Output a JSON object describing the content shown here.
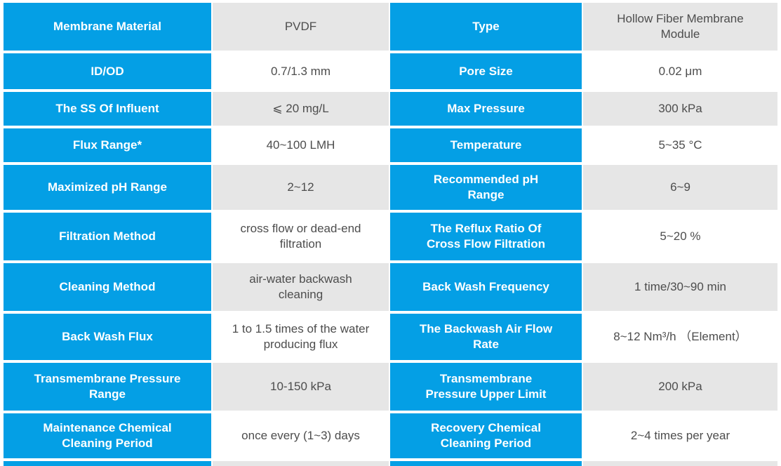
{
  "table": {
    "rows": [
      {
        "c0": "Membrane Material",
        "c1": "PVDF",
        "c2": "Type",
        "c3": "Hollow Fiber Membrane Module"
      },
      {
        "c0": "ID/OD",
        "c1": "0.7/1.3 mm",
        "c2": "Pore Size",
        "c3": "0.02 μm"
      },
      {
        "c0": "The SS Of Influent",
        "c1": "⩽ 20 mg/L",
        "c2": "Max Pressure",
        "c3": "300 kPa"
      },
      {
        "c0": "Flux Range*",
        "c1": "40~100 LMH",
        "c2": "Temperature",
        "c3": "5~35 °C"
      },
      {
        "c0": "Maximized pH Range",
        "c1": "2~12",
        "c2": "Recommended pH Range",
        "c3": "6~9"
      },
      {
        "c0": "Filtration Method",
        "c1": "cross flow or dead-end filtration",
        "c2": "The Reflux Ratio Of Cross Flow Filtration",
        "c3": "5~20 %"
      },
      {
        "c0": "Cleaning Method",
        "c1": "air-water backwash cleaning",
        "c2": "Back Wash Frequency",
        "c3": "1 time/30~90 min"
      },
      {
        "c0": "Back Wash Flux",
        "c1": "1 to 1.5 times of the water producing flux",
        "c2": "The Backwash Air Flow Rate",
        "c3": "8~12 Nm³/h （Element）"
      },
      {
        "c0": "Transmembrane Pressure Range",
        "c1": "10-150 kPa",
        "c2": "Transmembrane Pressure Upper Limit",
        "c3": "200 kPa"
      },
      {
        "c0": "Maintenance Chemical Cleaning Period",
        "c1": "once every (1~3) days",
        "c2": "Recovery Chemical Cleaning Period",
        "c3": "2~4 times per year"
      }
    ]
  },
  "colors": {
    "label_bg": "#049fe5",
    "label_text": "#ffffff",
    "value_bg": "#ffffff",
    "value_bg_alt": "#e6e6e6",
    "value_text": "#4d4d4d",
    "page_bg": "#ffffff"
  }
}
